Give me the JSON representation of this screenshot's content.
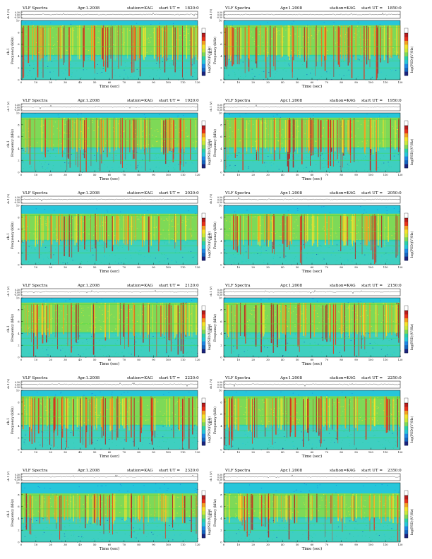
{
  "page": {
    "title": "VLF Spectra",
    "date": "Apr.1.2008",
    "station": "station=KAG",
    "start_label": "start  UT =",
    "amp_ylabel": "ch.1 (V)",
    "amp_ticks": [
      "0.30",
      "0.00",
      "-0.30"
    ],
    "spec_ylabel_top": "ch.1",
    "spec_ylabel": "Frequency (kHz)",
    "xlabel": "Time (sec)",
    "cbar_label": "log(PSD)(V²/Hz)"
  },
  "colors": {
    "scale": [
      "#1a237e",
      "#1565c0",
      "#1e88e5",
      "#26c6da",
      "#2bd0a8",
      "#7ed957",
      "#cbe83a",
      "#f4e22a",
      "#f5a020",
      "#e8311a",
      "#b71c1c",
      "#ffffff"
    ]
  },
  "chart_data": [
    {
      "type": "heatmap",
      "start_ut": "1820:0",
      "x_range": [
        0,
        120
      ],
      "y_range": [
        0,
        10
      ],
      "x_ticks": [
        0,
        10,
        20,
        30,
        40,
        50,
        60,
        70,
        80,
        90,
        100,
        110,
        120
      ],
      "y_ticks": [
        0,
        2,
        4,
        6,
        8,
        10
      ],
      "band_top_khz": 9.2,
      "activity": 0.75
    },
    {
      "type": "heatmap",
      "start_ut": "1850:0",
      "x_range": [
        0,
        120
      ],
      "y_range": [
        0,
        10
      ],
      "x_ticks": [
        0,
        10,
        20,
        30,
        40,
        50,
        60,
        70,
        80,
        90,
        100,
        110,
        120
      ],
      "y_ticks": [
        0,
        2,
        4,
        6,
        8,
        10
      ],
      "band_top_khz": 9.2,
      "activity": 0.75
    },
    {
      "type": "heatmap",
      "start_ut": "1920:0",
      "x_range": [
        0,
        120
      ],
      "y_range": [
        0,
        10
      ],
      "x_ticks": [
        0,
        10,
        20,
        30,
        40,
        50,
        60,
        70,
        80,
        90,
        100,
        110,
        120
      ],
      "y_ticks": [
        0,
        2,
        4,
        6,
        8,
        10
      ],
      "band_top_khz": 9.2,
      "activity": 0.6
    },
    {
      "type": "heatmap",
      "start_ut": "1950:0",
      "x_range": [
        0,
        120
      ],
      "y_range": [
        0,
        10
      ],
      "x_ticks": [
        0,
        10,
        20,
        30,
        40,
        50,
        60,
        70,
        80,
        90,
        100,
        110,
        120
      ],
      "y_ticks": [
        0,
        2,
        4,
        6,
        8,
        10
      ],
      "band_top_khz": 9.2,
      "activity": 0.65
    },
    {
      "type": "heatmap",
      "start_ut": "2020:0",
      "x_range": [
        0,
        120
      ],
      "y_range": [
        0,
        10
      ],
      "x_ticks": [
        0,
        10,
        20,
        30,
        40,
        50,
        60,
        70,
        80,
        90,
        100,
        110,
        120
      ],
      "y_ticks": [
        0,
        2,
        4,
        6,
        8,
        10
      ],
      "band_top_khz": 8.6,
      "activity": 0.5
    },
    {
      "type": "heatmap",
      "start_ut": "2050:0",
      "x_range": [
        0,
        120
      ],
      "y_range": [
        0,
        10
      ],
      "x_ticks": [
        0,
        10,
        20,
        30,
        40,
        50,
        60,
        70,
        80,
        90,
        100,
        110,
        120
      ],
      "y_ticks": [
        0,
        2,
        4,
        6,
        8,
        10
      ],
      "band_top_khz": 8.6,
      "activity": 0.5
    },
    {
      "type": "heatmap",
      "start_ut": "2120:0",
      "x_range": [
        0,
        120
      ],
      "y_range": [
        0,
        10
      ],
      "x_ticks": [
        0,
        10,
        20,
        30,
        40,
        50,
        60,
        70,
        80,
        90,
        100,
        110,
        120
      ],
      "y_ticks": [
        0,
        2,
        4,
        6,
        8,
        10
      ],
      "band_top_khz": 9.2,
      "activity": 0.4
    },
    {
      "type": "heatmap",
      "start_ut": "2150:0",
      "x_range": [
        0,
        120
      ],
      "y_range": [
        0,
        10
      ],
      "x_ticks": [
        0,
        10,
        20,
        30,
        40,
        50,
        60,
        70,
        80,
        90,
        100,
        110,
        120
      ],
      "y_ticks": [
        0,
        2,
        4,
        6,
        8,
        10
      ],
      "band_top_khz": 9.2,
      "activity": 0.45
    },
    {
      "type": "heatmap",
      "start_ut": "2220:0",
      "x_range": [
        0,
        120
      ],
      "y_range": [
        0,
        10
      ],
      "x_ticks": [
        0,
        10,
        20,
        30,
        40,
        50,
        60,
        70,
        80,
        90,
        100,
        110,
        120
      ],
      "y_ticks": [
        0,
        2,
        4,
        6,
        8,
        10
      ],
      "band_top_khz": 9.0,
      "activity": 0.7
    },
    {
      "type": "heatmap",
      "start_ut": "2250:0",
      "x_range": [
        0,
        120
      ],
      "y_range": [
        0,
        10
      ],
      "x_ticks": [
        0,
        10,
        20,
        30,
        40,
        50,
        60,
        70,
        80,
        90,
        100,
        110,
        120
      ],
      "y_ticks": [
        0,
        2,
        4,
        6,
        8,
        10
      ],
      "band_top_khz": 9.0,
      "activity": 0.7
    },
    {
      "type": "heatmap",
      "start_ut": "2320:0",
      "x_range": [
        0,
        120
      ],
      "y_range": [
        0,
        10
      ],
      "x_ticks": [
        0,
        10,
        20,
        30,
        40,
        50,
        60,
        70,
        80,
        90,
        100,
        110,
        120
      ],
      "y_ticks": [
        0,
        2,
        4,
        6,
        8,
        10
      ],
      "band_top_khz": 8.2,
      "activity": 0.45
    },
    {
      "type": "heatmap",
      "start_ut": "2350:0",
      "x_range": [
        0,
        120
      ],
      "y_range": [
        0,
        10
      ],
      "x_ticks": [
        0,
        10,
        20,
        30,
        40,
        50,
        60,
        70,
        80,
        90,
        100,
        110,
        120
      ],
      "y_ticks": [
        0,
        2,
        4,
        6,
        8,
        10
      ],
      "band_top_khz": 8.2,
      "activity": 0.45
    }
  ]
}
